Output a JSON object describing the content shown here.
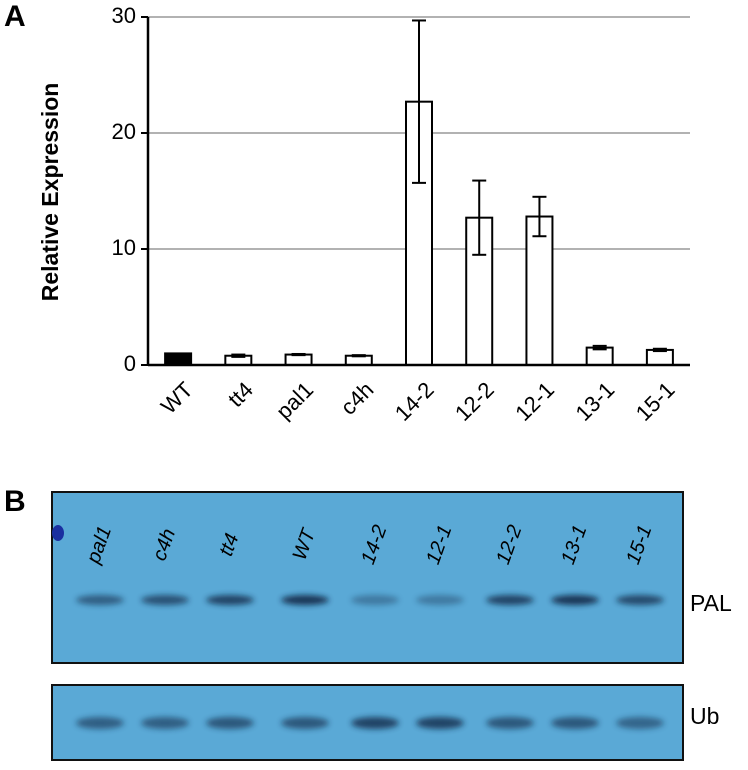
{
  "panels": {
    "a": "A",
    "b": "B"
  },
  "chart_data": {
    "type": "bar",
    "ylabel": "Relative Expression",
    "categories": [
      "WT",
      "tt4",
      "pal1",
      "c4h",
      "14-2",
      "12-2",
      "12-1",
      "13-1",
      "15-1"
    ],
    "values": [
      1.0,
      0.8,
      0.9,
      0.8,
      22.7,
      12.7,
      12.8,
      1.5,
      1.3
    ],
    "errors": [
      0,
      0.1,
      0.05,
      0.05,
      7.0,
      3.2,
      1.7,
      0.15,
      0.1
    ],
    "colors": [
      "#000000",
      "#ffffff",
      "#ffffff",
      "#ffffff",
      "#ffffff",
      "#ffffff",
      "#ffffff",
      "#ffffff",
      "#ffffff"
    ],
    "ylim": [
      0,
      30
    ],
    "yticks": [
      0,
      10,
      20,
      30
    ],
    "grid": true
  },
  "blot": {
    "lanes": [
      "pal1",
      "c4h",
      "tt4",
      "WT",
      "14-2",
      "12-1",
      "12-2",
      "13-1",
      "15-1"
    ],
    "bands": [
      "PAL",
      "Ub"
    ]
  }
}
